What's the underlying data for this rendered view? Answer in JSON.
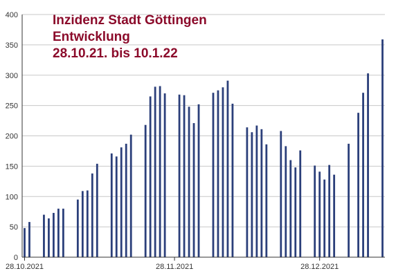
{
  "colors": {
    "bar": "#2b3f7a",
    "title": "#8b0a2a",
    "grid": "#c8c8c8",
    "axis": "#333333"
  },
  "chart_data": {
    "type": "bar",
    "title_lines": [
      "Inzidenz Stadt Göttingen",
      "Entwicklung",
      "28.10.21. bis 10.1.22"
    ],
    "xlabel": "",
    "ylabel": "",
    "ylim": [
      0,
      400
    ],
    "yticks": [
      "0",
      "50",
      "100",
      "150",
      "200",
      "250",
      "300",
      "350",
      "400"
    ],
    "grid": true,
    "x_tick_labels": [
      {
        "label": "28.10.2021",
        "index": 0
      },
      {
        "label": "28.11.2021",
        "index": 31
      },
      {
        "label": "28.12.2021",
        "index": 61
      }
    ],
    "dates": [
      "28.10.2021",
      "29.10.2021",
      "30.10.2021",
      "31.10.2021",
      "01.11.2021",
      "02.11.2021",
      "03.11.2021",
      "04.11.2021",
      "05.11.2021",
      "06.11.2021",
      "07.11.2021",
      "08.11.2021",
      "09.11.2021",
      "10.11.2021",
      "11.11.2021",
      "12.11.2021",
      "13.11.2021",
      "14.11.2021",
      "15.11.2021",
      "16.11.2021",
      "17.11.2021",
      "18.11.2021",
      "19.11.2021",
      "20.11.2021",
      "21.11.2021",
      "22.11.2021",
      "23.11.2021",
      "24.11.2021",
      "25.11.2021",
      "26.11.2021",
      "27.11.2021",
      "28.11.2021",
      "29.11.2021",
      "30.11.2021",
      "01.12.2021",
      "02.12.2021",
      "03.12.2021",
      "04.12.2021",
      "05.12.2021",
      "06.12.2021",
      "07.12.2021",
      "08.12.2021",
      "09.12.2021",
      "10.12.2021",
      "11.12.2021",
      "12.12.2021",
      "13.12.2021",
      "14.12.2021",
      "15.12.2021",
      "16.12.2021",
      "17.12.2021",
      "18.12.2021",
      "19.12.2021",
      "20.12.2021",
      "21.12.2021",
      "22.12.2021",
      "23.12.2021",
      "24.12.2021",
      "25.12.2021",
      "26.12.2021",
      "27.12.2021",
      "28.12.2021",
      "29.12.2021",
      "30.12.2021",
      "31.12.2021",
      "01.01.2022",
      "02.01.2022",
      "03.01.2022",
      "04.01.2022",
      "05.01.2022",
      "06.01.2022",
      "07.01.2022",
      "08.01.2022",
      "09.01.2022",
      "10.01.2022"
    ],
    "values": [
      48,
      58,
      null,
      null,
      70,
      64,
      73,
      80,
      80,
      null,
      null,
      95,
      109,
      110,
      138,
      154,
      null,
      null,
      171,
      166,
      181,
      187,
      202,
      null,
      null,
      218,
      265,
      281,
      282,
      270,
      null,
      null,
      268,
      267,
      248,
      221,
      252,
      null,
      null,
      271,
      275,
      280,
      291,
      253,
      null,
      null,
      214,
      206,
      217,
      211,
      186,
      null,
      null,
      208,
      183,
      160,
      148,
      176,
      null,
      null,
      151,
      141,
      128,
      152,
      136,
      null,
      null,
      187,
      null,
      238,
      271,
      303,
      null,
      null,
      359
    ]
  }
}
